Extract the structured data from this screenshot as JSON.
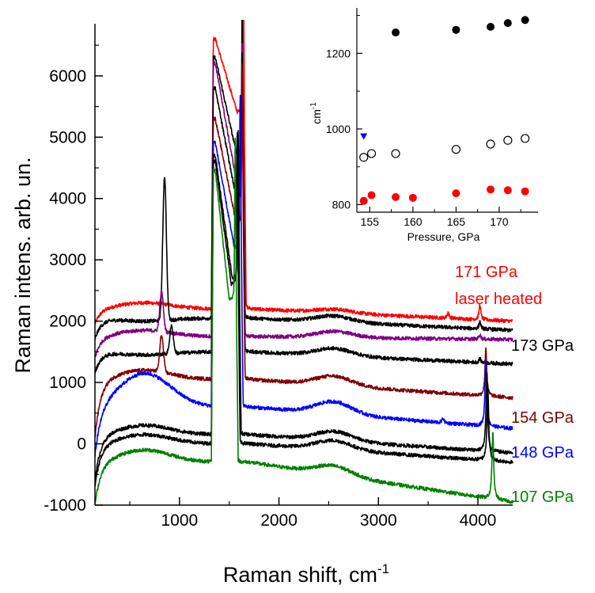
{
  "chart_data": [
    {
      "type": "line",
      "xlabel": "Raman shift, cm",
      "xlabel_sup": "-1",
      "ylabel": "Raman intens. arb. un.",
      "xlim": [
        150,
        4350
      ],
      "ylim": [
        -1000,
        6850
      ],
      "xticks": [
        1000,
        2000,
        3000,
        4000
      ],
      "yticks": [
        -1000,
        0,
        1000,
        2000,
        3000,
        4000,
        5000,
        6000
      ],
      "xtick_labels": [
        "1000",
        "2000",
        "3000",
        "4000"
      ],
      "ytick_labels": [
        "-1000",
        "0",
        "1000",
        "2000",
        "3000",
        "4000",
        "5000",
        "6000"
      ],
      "grid": false,
      "annotations": [
        {
          "text": "171 GPa",
          "color": "#ff0000"
        },
        {
          "text": "laser heated",
          "color": "#ff0000"
        },
        {
          "text": "173 GPa",
          "color": "#000000"
        },
        {
          "text": "154 GPa",
          "color": "#800000"
        },
        {
          "text": "148 GPa",
          "color": "#0000ff"
        },
        {
          "text": "107 GPa",
          "color": "#008000"
        }
      ],
      "series": [
        {
          "color": "#ff0000",
          "base": 2200,
          "left": 1950,
          "lpeak": 2300,
          "bump": 60,
          "d1": 6600,
          "d2": 5400,
          "d1s": 300,
          "d2s": 300,
          "g1": 6050,
          "g2": 2200,
          "gpos": 1640,
          "right": 2000,
          "lines": [
            [
              3700,
              100
            ],
            [
              4020,
              250
            ]
          ]
        },
        {
          "color": "#000000",
          "base": 2050,
          "left": 1700,
          "lpeak": 2000,
          "bump": 100,
          "d1": 6300,
          "d2": 4750,
          "d1s": 300,
          "d2s": 250,
          "g1": 4500,
          "g2": 1800,
          "gpos": 1630,
          "right": 1850,
          "lines": [
            [
              4020,
              120
            ]
          ],
          "x1": [
            850,
            2350
          ]
        },
        {
          "color": "#800080",
          "base": 1750,
          "left": 1400,
          "lpeak": 1850,
          "bump": 100,
          "d1": 6200,
          "d2": 4300,
          "d1s": 300,
          "d2s": 200,
          "g1": 4150,
          "g2": 1600,
          "gpos": 1630,
          "right": 1700,
          "lines": [
            [
              4020,
              80
            ]
          ],
          "x1": [
            820,
            650
          ]
        },
        {
          "color": "#000000",
          "base": 1500,
          "left": 1150,
          "lpeak": 1450,
          "bump": 120,
          "d1": 5800,
          "d2": 4000,
          "d1s": 300,
          "d2s": 200,
          "g1": 4050,
          "g2": 1450,
          "gpos": 1630,
          "right": 1300,
          "lines": [
            [
              4020,
              70
            ]
          ],
          "x1": [
            920,
            450
          ]
        },
        {
          "color": "#800000",
          "base": 1050,
          "left": 100,
          "lpeak": 1200,
          "bump": 150,
          "d1": 5300,
          "d2": 3600,
          "d1s": 300,
          "d2s": 200,
          "g1": 3850,
          "g2": 900,
          "gpos": 1630,
          "right": 750,
          "lines": [
            [
              4080,
              800
            ]
          ],
          "x1": [
            820,
            600
          ]
        },
        {
          "color": "#0000ff",
          "base": 600,
          "left": -200,
          "lpeak": 1150,
          "bump": 200,
          "d1": 4900,
          "d2": 3200,
          "d1s": 250,
          "d2s": 150,
          "g1": 3300,
          "g2": 450,
          "gpos": 1610,
          "right": 250,
          "lines": [
            [
              4080,
              1100
            ],
            [
              3650,
              80
            ]
          ]
        },
        {
          "color": "#000000",
          "base": 150,
          "left": -600,
          "lpeak": 300,
          "bump": 150,
          "d1": 4700,
          "d2": 2700,
          "d1s": 250,
          "d2s": 150,
          "g1": 2700,
          "g2": 200,
          "gpos": 1590,
          "right": -150,
          "lines": [
            [
              4090,
              1300
            ]
          ]
        },
        {
          "color": "#000000",
          "base": 0,
          "left": -700,
          "lpeak": 150,
          "bump": 150,
          "d1": 4600,
          "d2": 2600,
          "d1s": 250,
          "d2s": 150,
          "g1": 2650,
          "g2": 50,
          "gpos": 1580,
          "right": -300,
          "lines": [
            [
              4100,
              1200
            ]
          ]
        },
        {
          "color": "#008000",
          "base": -300,
          "left": -1000,
          "lpeak": -100,
          "bump": 150,
          "d1": 4450,
          "d2": 2350,
          "d1s": 250,
          "d2s": 150,
          "g1": 2450,
          "g2": -300,
          "gpos": 1560,
          "right": -950,
          "lines": [
            [
              4150,
              1100
            ]
          ]
        }
      ]
    },
    {
      "type": "scatter",
      "xlabel": "Pressure, GPa",
      "ylabel": "cm",
      "ylabel_sup": "-1",
      "xlim": [
        153.5,
        174.5
      ],
      "ylim": [
        780,
        1320
      ],
      "xticks": [
        155,
        160,
        165,
        170
      ],
      "yticks": [
        800,
        1000,
        1200
      ],
      "xtick_labels": [
        "155",
        "160",
        "165",
        "170"
      ],
      "ytick_labels": [
        "800",
        "1000",
        "1200"
      ],
      "grid": false,
      "series": [
        {
          "marker": "filled-circle",
          "color": "#000000",
          "x": [
            158,
            165,
            169,
            171,
            173
          ],
          "y": [
            1255,
            1262,
            1270,
            1280,
            1288
          ]
        },
        {
          "marker": "open-circle",
          "color": "#000000",
          "x": [
            154.3,
            155.2,
            158,
            165,
            169,
            171,
            173
          ],
          "y": [
            925,
            935,
            935,
            946,
            960,
            970,
            975
          ]
        },
        {
          "marker": "filled-circle",
          "color": "#ff0000",
          "x": [
            154.3,
            155.2,
            158,
            160,
            165,
            169,
            171,
            173
          ],
          "y": [
            810,
            825,
            820,
            818,
            830,
            840,
            838,
            835
          ]
        },
        {
          "marker": "filled-triangle",
          "color": "#0000ff",
          "x": [
            154.3
          ],
          "y": [
            980
          ]
        }
      ]
    }
  ]
}
